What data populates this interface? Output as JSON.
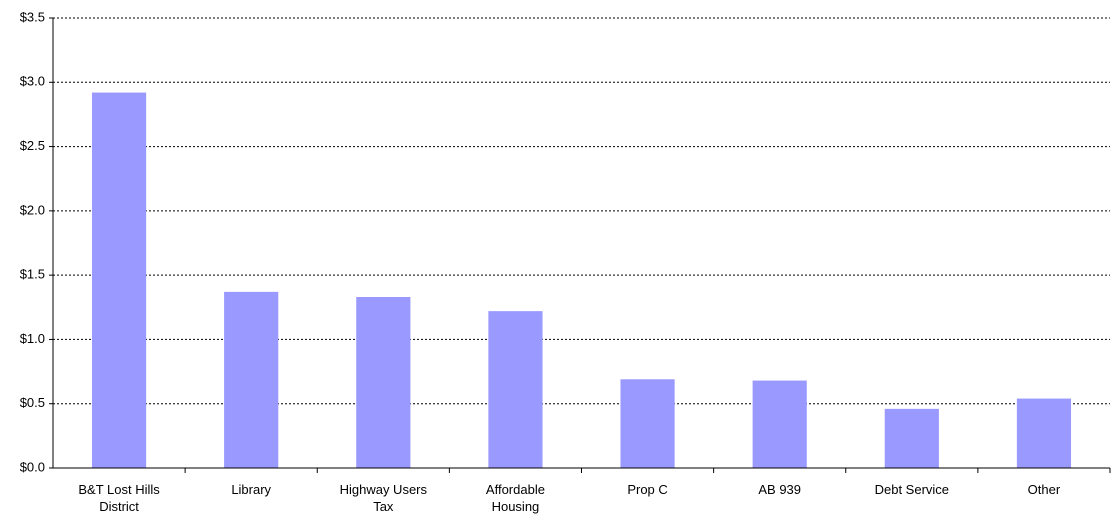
{
  "chart_data": {
    "type": "bar",
    "categories": [
      "B&T Lost Hills District",
      "Library",
      "Highway Users Tax",
      "Affordable Housing",
      "Prop C",
      "AB 939",
      "Debt Service",
      "Other"
    ],
    "values": [
      2.92,
      1.37,
      1.33,
      1.22,
      0.69,
      0.68,
      0.46,
      0.54
    ],
    "color": "#9999ff",
    "ylim": [
      0,
      3.5
    ],
    "yticks": [
      {
        "value": 0,
        "label": "$0.0"
      },
      {
        "value": 0.5,
        "label": "$0.5"
      },
      {
        "value": 1,
        "label": "$1.0"
      },
      {
        "value": 1.5,
        "label": "$1.5"
      },
      {
        "value": 2,
        "label": "$2.0"
      },
      {
        "value": 2.5,
        "label": "$2.5"
      },
      {
        "value": 3,
        "label": "$3.0"
      },
      {
        "value": 3.5,
        "label": "$3.5"
      }
    ],
    "grid": true
  }
}
